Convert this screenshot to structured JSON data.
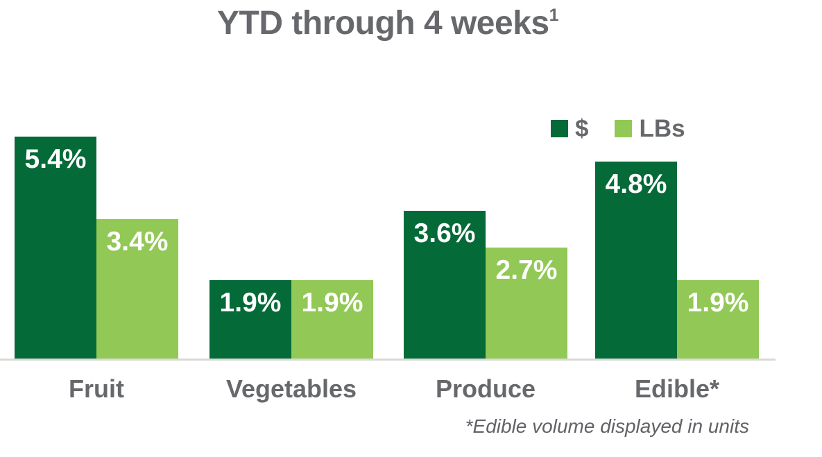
{
  "title": {
    "text": "YTD through 4 weeks",
    "superscript": "1"
  },
  "legend": [
    {
      "label": "$",
      "color": "#046A38"
    },
    {
      "label": "LBs",
      "color": "#92C855"
    }
  ],
  "footnote": "*Edible volume displayed in units",
  "colors": {
    "dollars_series": "#046A38",
    "lbs_series": "#92C855",
    "text_gray": "#66686B",
    "value_label": "#FFFFFF",
    "axis_line": "#D9D9D4",
    "background": "#FFFFFF"
  },
  "chart_data": {
    "type": "bar",
    "title": "YTD through 4 weeks¹",
    "categories": [
      "Fruit",
      "Vegetables",
      "Produce",
      "Edible*"
    ],
    "series": [
      {
        "name": "$",
        "color": "#046A38",
        "values": [
          5.4,
          1.9,
          3.6,
          4.8
        ],
        "labels": [
          "5.4%",
          "1.9%",
          "3.6%",
          "4.8%"
        ]
      },
      {
        "name": "LBs",
        "color": "#92C855",
        "values": [
          3.4,
          1.9,
          2.7,
          1.9
        ],
        "labels": [
          "3.4%",
          "1.9%",
          "2.7%",
          "1.9%"
        ]
      }
    ],
    "value_suffix": "%",
    "xlabel": "",
    "ylabel": "",
    "ylim": [
      0,
      5.4
    ],
    "grid": false,
    "y_axis_visible": false,
    "legend_position": "top-right",
    "footnote": "*Edible volume displayed in units"
  }
}
